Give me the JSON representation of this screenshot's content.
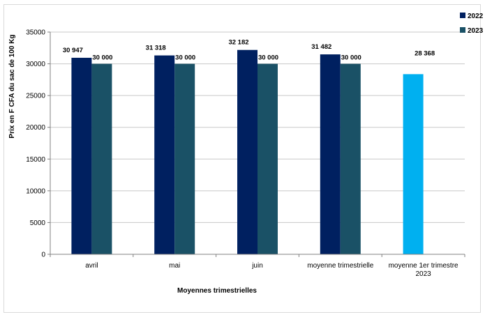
{
  "chart_data": {
    "type": "bar",
    "categories": [
      [
        "avril"
      ],
      [
        "mai"
      ],
      [
        "juin"
      ],
      [
        "moyenne trimestrielle"
      ],
      [
        "moyenne 1er  trimestre",
        "2023"
      ]
    ],
    "series": [
      {
        "name": "2022",
        "color": "#002060",
        "values": [
          30947,
          31318,
          32182,
          31482,
          null
        ],
        "labels": [
          "30 947",
          "31 318",
          "32 182",
          "31 482",
          ""
        ]
      },
      {
        "name": "2023",
        "color": "#1A5166",
        "values": [
          30000,
          30000,
          30000,
          30000,
          null
        ],
        "labels": [
          "30 000",
          "30 000",
          "30 000",
          "30 000",
          ""
        ]
      }
    ],
    "extra_bar": {
      "category_index": 4,
      "value": 28368,
      "label": "28 368",
      "color": "#00B0F0"
    },
    "xlabel": "Moyennes trimestrielles",
    "ylabel": "Prix en F CFA du sac de 100 Kg",
    "ylim": [
      0,
      35000
    ],
    "yticks": [
      0,
      5000,
      10000,
      15000,
      20000,
      25000,
      30000,
      35000
    ],
    "grid": true,
    "legend_position": "top-right"
  }
}
